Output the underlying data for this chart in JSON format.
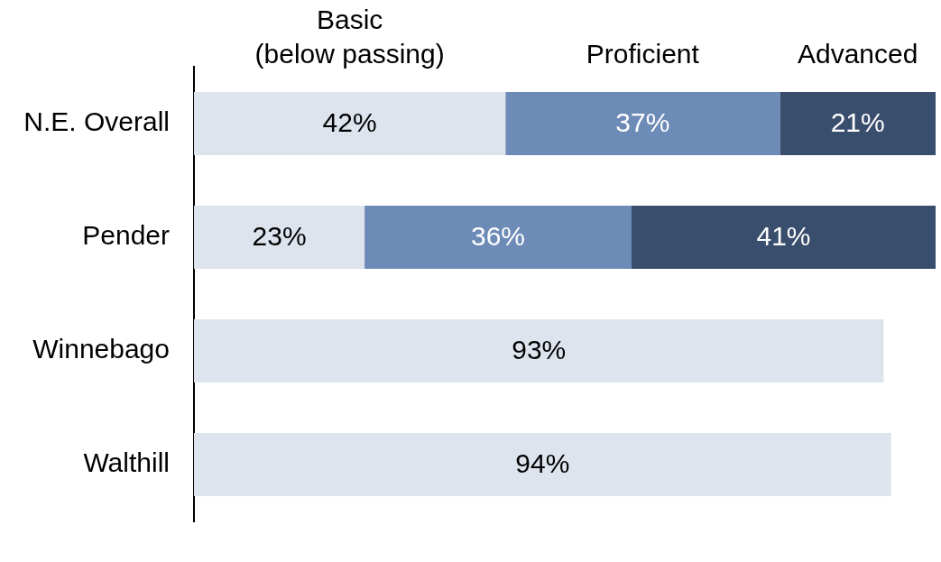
{
  "chart_data": {
    "type": "bar",
    "orientation": "horizontal",
    "stacked": true,
    "categories": [
      "N.E. Overall",
      "Pender",
      "Winnebago",
      "Walthill"
    ],
    "series": [
      {
        "name": "Basic (below passing)",
        "color": "#dee4ee",
        "values": [
          42,
          23,
          93,
          94
        ],
        "value_labels": [
          "42%",
          "23%",
          "93%",
          "94%"
        ]
      },
      {
        "name": "Proficient",
        "color": "#6d8bb7",
        "values": [
          37,
          36,
          null,
          null
        ],
        "value_labels": [
          "37%",
          "36%",
          null,
          null
        ]
      },
      {
        "name": "Advanced",
        "color": "#394d6c",
        "values": [
          21,
          41,
          null,
          null
        ],
        "value_labels": [
          "21%",
          "41%",
          null,
          null
        ]
      }
    ],
    "xlim": [
      0,
      100
    ],
    "tick_labels": "y"
  }
}
